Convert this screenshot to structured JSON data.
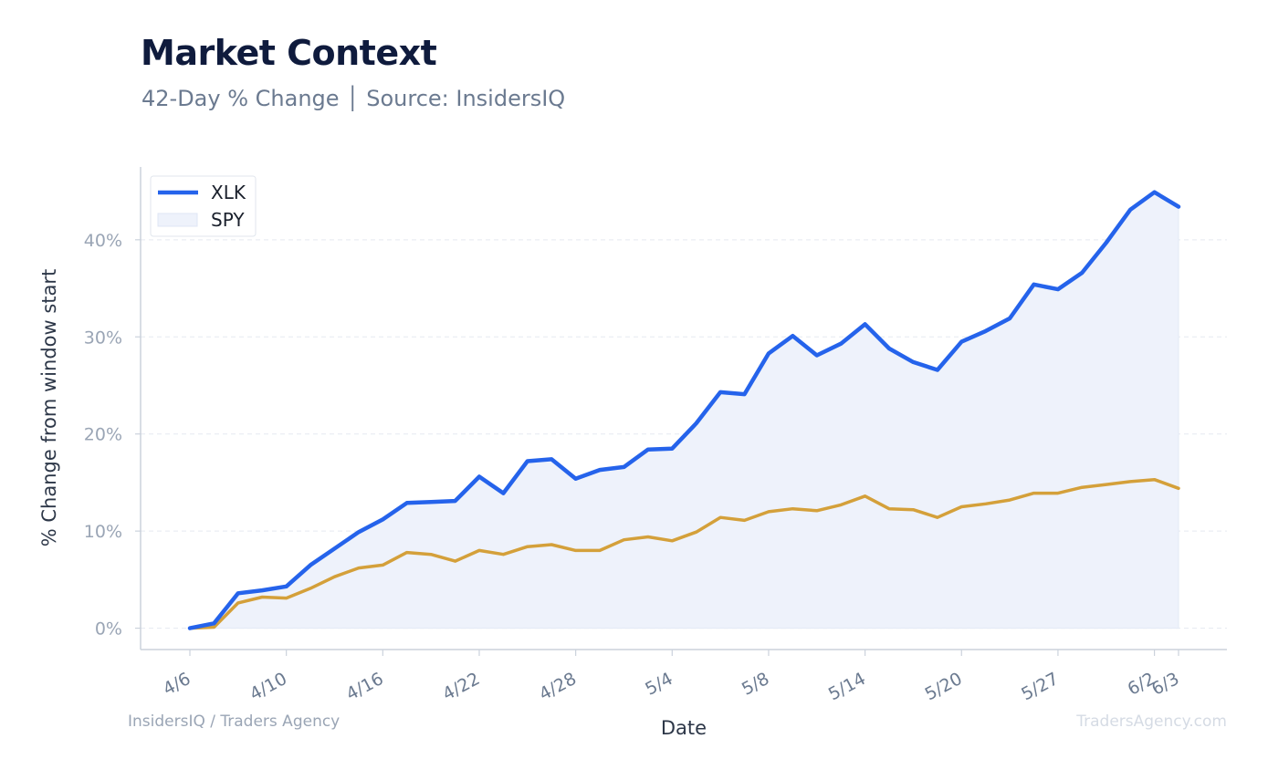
{
  "title": "Market Context",
  "subtitle": "42-Day % Change │ Source: InsidersIQ",
  "footer": {
    "left": "InsidersIQ / Traders Agency",
    "right": "TradersAgency.com"
  },
  "colors": {
    "xlk": "#2563eb",
    "spy": "#d4a03a",
    "fill": "#eef2fb",
    "grid": "#e5e9f0",
    "axis": "#cbd2dc"
  },
  "chart_data": {
    "type": "line",
    "xlabel": "Date",
    "ylabel": "% Change from window start",
    "ylim": [
      -2.2,
      47.5
    ],
    "yticks": [
      0,
      10,
      20,
      30,
      40
    ],
    "ytick_labels": [
      "0%",
      "10%",
      "20%",
      "30%",
      "40%"
    ],
    "grid": true,
    "legend_position": "top-left",
    "x": [
      "4/6",
      "4/7",
      "4/8",
      "4/9",
      "4/10",
      "4/13",
      "4/14",
      "4/15",
      "4/16",
      "4/17",
      "4/20",
      "4/21",
      "4/22",
      "4/23",
      "4/24",
      "4/27",
      "4/28",
      "4/29",
      "4/30",
      "5/1",
      "5/4",
      "5/5",
      "5/6",
      "5/7",
      "5/8",
      "5/11",
      "5/12",
      "5/13",
      "5/14",
      "5/15",
      "5/18",
      "5/19",
      "5/20",
      "5/21",
      "5/22",
      "5/26",
      "5/27",
      "5/28",
      "5/29",
      "6/1",
      "6/2",
      "6/3"
    ],
    "xtick_labels": [
      "4/6",
      "4/10",
      "4/16",
      "4/22",
      "4/28",
      "5/4",
      "5/8",
      "5/14",
      "5/20",
      "5/27",
      "6/2",
      "6/3"
    ],
    "series": [
      {
        "name": "XLK",
        "values": [
          0.0,
          0.5,
          3.6,
          3.9,
          4.3,
          6.5,
          8.2,
          9.9,
          11.2,
          12.9,
          13.0,
          13.1,
          15.6,
          13.9,
          17.2,
          17.4,
          15.4,
          16.3,
          16.6,
          18.4,
          18.5,
          21.1,
          24.3,
          24.1,
          28.3,
          30.1,
          28.1,
          29.3,
          31.3,
          28.8,
          27.4,
          26.6,
          29.5,
          30.6,
          31.9,
          35.4,
          34.9,
          36.6,
          39.7,
          43.1,
          44.9,
          43.4
        ]
      },
      {
        "name": "SPY",
        "values": [
          0.0,
          0.1,
          2.6,
          3.2,
          3.1,
          4.1,
          5.3,
          6.2,
          6.5,
          7.8,
          7.6,
          6.9,
          8.0,
          7.6,
          8.4,
          8.6,
          8.0,
          8.0,
          9.1,
          9.4,
          9.0,
          9.9,
          11.4,
          11.1,
          12.0,
          12.3,
          12.1,
          12.7,
          13.6,
          12.3,
          12.2,
          11.4,
          12.5,
          12.8,
          13.2,
          13.9,
          13.9,
          14.5,
          14.8,
          15.1,
          15.3,
          14.4
        ]
      }
    ]
  }
}
